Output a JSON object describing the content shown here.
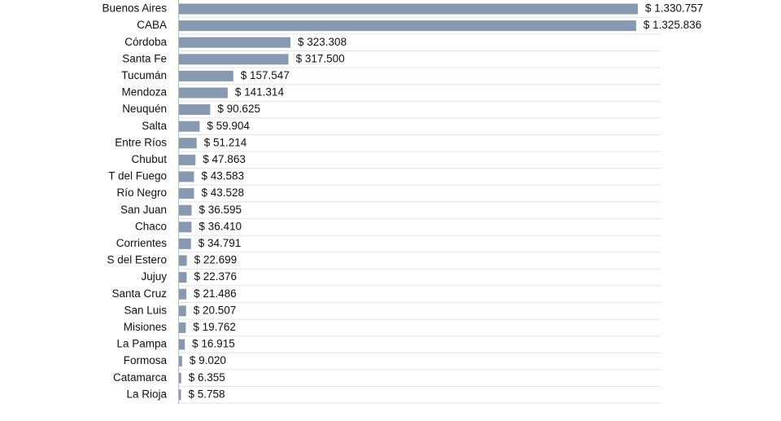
{
  "chart_data": {
    "type": "bar",
    "orientation": "horizontal",
    "color": "#8798b1",
    "categories": [
      "Buenos Aires",
      "CABA",
      "Córdoba",
      "Santa Fe",
      "Tucumán",
      "Mendoza",
      "Neuquén",
      "Salta",
      "Entre Ríos",
      "Chubut",
      "T del Fuego",
      "Río Negro",
      "San Juan",
      "Chaco",
      "Corrientes",
      "S del Estero",
      "Jujuy",
      "Santa Cruz",
      "San Luis",
      "Misiones",
      "La Pampa",
      "Formosa",
      "Catamarca",
      "La Rioja"
    ],
    "values": [
      1330757,
      1325836,
      323308,
      317500,
      157547,
      141314,
      90625,
      59904,
      51214,
      47863,
      43583,
      43528,
      36595,
      36410,
      34791,
      22699,
      22376,
      21486,
      20507,
      19762,
      16915,
      9020,
      6355,
      5758
    ],
    "value_labels": [
      "$ 1.330.757",
      "$ 1.325.836",
      "$ 323.308",
      "$ 317.500",
      "$ 157.547",
      "$ 141.314",
      "$ 90.625",
      "$ 59.904",
      "$ 51.214",
      "$ 47.863",
      "$ 43.583",
      "$ 43.528",
      "$ 36.595",
      "$ 36.410",
      "$ 34.791",
      "$ 22.699",
      "$ 22.376",
      "$ 21.486",
      "$ 20.507",
      "$ 19.762",
      "$ 16.915",
      "$ 9.020",
      "$ 6.355",
      "$ 5.758"
    ]
  }
}
